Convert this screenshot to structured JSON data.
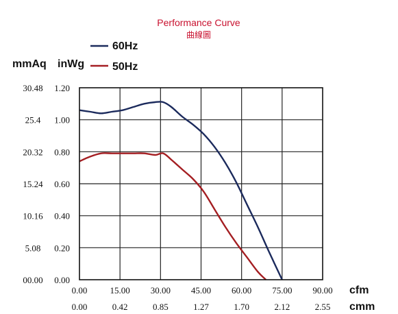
{
  "chart_data": {
    "type": "line",
    "title": "Performance Curve",
    "subtitle": "曲線圖",
    "y_units": [
      "mmAq",
      "inWg"
    ],
    "x_units": [
      "cfm",
      "cmm"
    ],
    "y_ticks_inwg": [
      "1.20",
      "1.00",
      "0.80",
      "0.60",
      "0.40",
      "0.20",
      "0.00"
    ],
    "y_ticks_mmaq": [
      "30.48",
      "25.4",
      "20.32",
      "15.24",
      "10.16",
      "5.08",
      "00.00"
    ],
    "x_ticks_cfm": [
      "0.00",
      "15.00",
      "30.00",
      "45.00",
      "60.00",
      "75.00",
      "90.00"
    ],
    "x_ticks_cmm": [
      "0.00",
      "0.42",
      "0.85",
      "1.27",
      "1.70",
      "2.12",
      "2.55"
    ],
    "xlim": [
      0,
      90
    ],
    "ylim": [
      0,
      1.2
    ],
    "grid": true,
    "legend_position": "top-left",
    "series": [
      {
        "name": "60Hz",
        "color": "#1b2a5c",
        "points": [
          [
            0,
            1.06
          ],
          [
            4,
            1.05
          ],
          [
            8,
            1.04
          ],
          [
            12,
            1.05
          ],
          [
            16,
            1.06
          ],
          [
            20,
            1.08
          ],
          [
            24,
            1.1
          ],
          [
            28,
            1.11
          ],
          [
            31,
            1.11
          ],
          [
            34,
            1.08
          ],
          [
            38,
            1.02
          ],
          [
            42,
            0.97
          ],
          [
            46,
            0.91
          ],
          [
            50,
            0.83
          ],
          [
            54,
            0.73
          ],
          [
            58,
            0.61
          ],
          [
            62,
            0.47
          ],
          [
            66,
            0.33
          ],
          [
            70,
            0.18
          ],
          [
            75,
            0.0
          ]
        ]
      },
      {
        "name": "50Hz",
        "color": "#a41e22",
        "points": [
          [
            0,
            0.74
          ],
          [
            4,
            0.77
          ],
          [
            8,
            0.79
          ],
          [
            12,
            0.79
          ],
          [
            16,
            0.79
          ],
          [
            20,
            0.79
          ],
          [
            24,
            0.79
          ],
          [
            28,
            0.78
          ],
          [
            31,
            0.79
          ],
          [
            34,
            0.75
          ],
          [
            38,
            0.69
          ],
          [
            42,
            0.63
          ],
          [
            46,
            0.55
          ],
          [
            50,
            0.44
          ],
          [
            54,
            0.33
          ],
          [
            58,
            0.23
          ],
          [
            62,
            0.14
          ],
          [
            66,
            0.05
          ],
          [
            69,
            0.0
          ]
        ]
      }
    ]
  }
}
